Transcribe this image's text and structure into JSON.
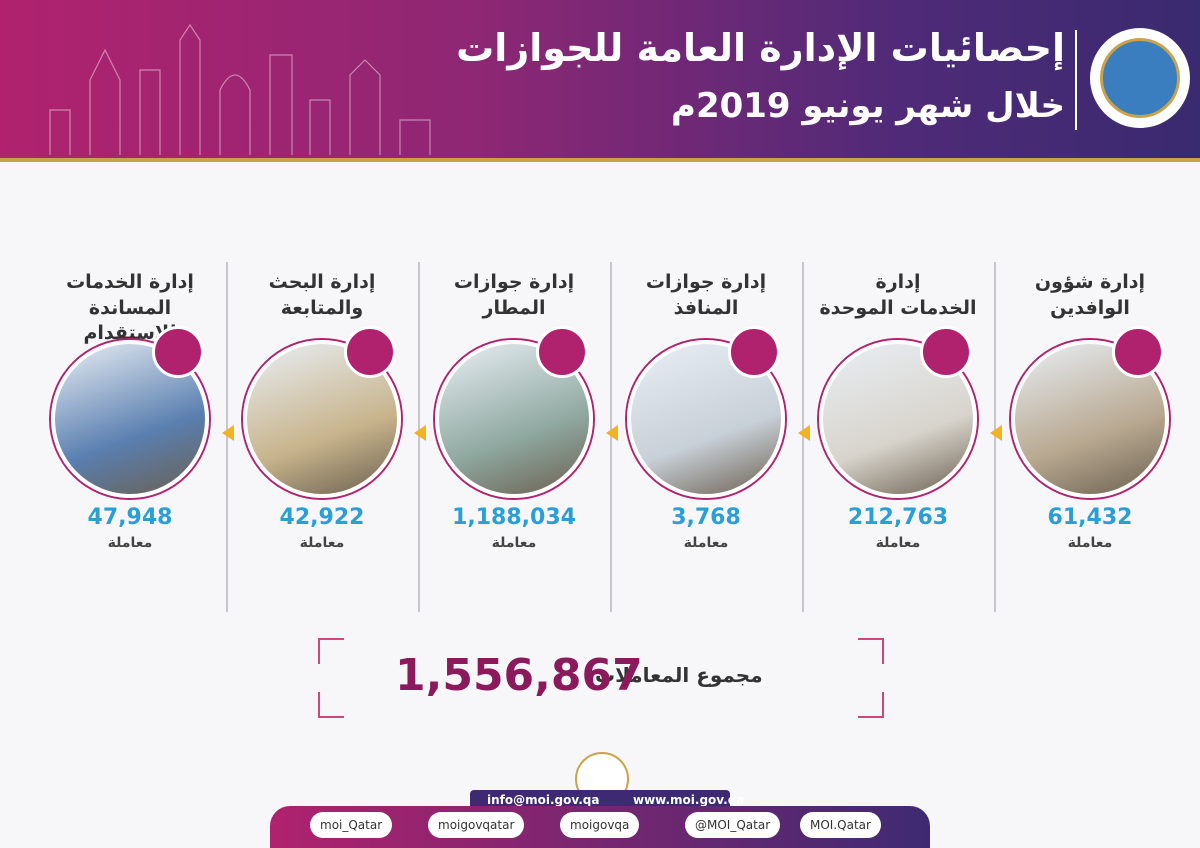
{
  "header": {
    "title": "إحصائيات الإدارة العامة للجوازات",
    "subtitle": "خلال شهر يونيو 2019م"
  },
  "departments": [
    {
      "lines": [
        "إدارة شؤون",
        "الوافدين"
      ],
      "value": "61,432",
      "unit": "معاملة"
    },
    {
      "lines": [
        "إدارة",
        "الخدمات الموحدة"
      ],
      "value": "212,763",
      "unit": "معاملة"
    },
    {
      "lines": [
        "إدارة جوازات",
        "المنافذ"
      ],
      "value": "3,768",
      "unit": "معاملة"
    },
    {
      "lines": [
        "إدارة جوازات",
        "المطار"
      ],
      "value": "1,188,034",
      "unit": "معاملة"
    },
    {
      "lines": [
        "إدارة البحث",
        "والمتابعة"
      ],
      "value": "42,922",
      "unit": "معاملة"
    },
    {
      "lines": [
        "إدارة الخدمات",
        "المساندة للاستقدام"
      ],
      "value": "47,948",
      "unit": "معاملة"
    }
  ],
  "total": {
    "label": "مجموع المعاملات",
    "value": "1,556,867"
  },
  "footer": {
    "email": "info@moi.gov.qa",
    "website": "www.moi.gov.qa",
    "social": [
      "moi_Qatar",
      "moigovqatar",
      "moigovqa",
      "@MOI_Qatar",
      "MOI.Qatar"
    ]
  }
}
